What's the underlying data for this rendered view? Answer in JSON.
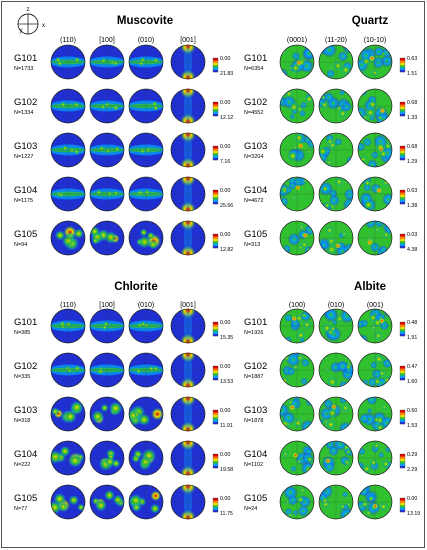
{
  "axes_icon": {
    "labels": [
      "z",
      "y",
      "x"
    ]
  },
  "scale_colors": [
    "#2030d0",
    "#00a0ff",
    "#30c030",
    "#e8e000",
    "#ff8000",
    "#e00000"
  ],
  "panels": [
    {
      "title": "Muscovite",
      "columns": [
        "(110)",
        "[100]",
        "(010)",
        "[001]"
      ],
      "rows": [
        {
          "sample": "G101",
          "n": "N=1733",
          "scale_min": "0.00",
          "scale_max": "21.83"
        },
        {
          "sample": "G102",
          "n": "N=1334",
          "scale_min": "0.00",
          "scale_max": "12.12"
        },
        {
          "sample": "G103",
          "n": "N=1227",
          "scale_min": "0.00",
          "scale_max": "7.16"
        },
        {
          "sample": "G104",
          "n": "N=1175",
          "scale_min": "0.00",
          "scale_max": "25.66"
        },
        {
          "sample": "G105",
          "n": "N=94",
          "scale_min": "0.00",
          "scale_max": "12.82"
        }
      ]
    },
    {
      "title": "Quartz",
      "columns": [
        "(0001)",
        "(11-20)",
        "(10-10)"
      ],
      "rows": [
        {
          "sample": "G101",
          "n": "N=6354",
          "scale_min": "0.63",
          "scale_max": "1.51"
        },
        {
          "sample": "G102",
          "n": "N=4552",
          "scale_min": "0.68",
          "scale_max": "1.33"
        },
        {
          "sample": "G103",
          "n": "N=3204",
          "scale_min": "0.68",
          "scale_max": "1.29"
        },
        {
          "sample": "G104",
          "n": "N=4672",
          "scale_min": "0.63",
          "scale_max": "1.38"
        },
        {
          "sample": "G105",
          "n": "N=313",
          "scale_min": "0.03",
          "scale_max": "4.38"
        }
      ]
    },
    {
      "title": "Chlorite",
      "columns": [
        "(110)",
        "[100]",
        "(010)",
        "[001]"
      ],
      "rows": [
        {
          "sample": "G101",
          "n": "N=385",
          "scale_min": "0.00",
          "scale_max": "15.35"
        },
        {
          "sample": "G102",
          "n": "N=335",
          "scale_min": "0.00",
          "scale_max": "13.53"
        },
        {
          "sample": "G103",
          "n": "N=318",
          "scale_min": "0.00",
          "scale_max": "11.91"
        },
        {
          "sample": "G104",
          "n": "N=222",
          "scale_min": "0.00",
          "scale_max": "19.58"
        },
        {
          "sample": "G105",
          "n": "N=77",
          "scale_min": "0.00",
          "scale_max": "11.75"
        }
      ]
    },
    {
      "title": "Albite",
      "columns": [
        "(100)",
        "(010)",
        "(001)"
      ],
      "rows": [
        {
          "sample": "G101",
          "n": "N=1926",
          "scale_min": "0.48",
          "scale_max": "1.91"
        },
        {
          "sample": "G102",
          "n": "N=1887",
          "scale_min": "0.47",
          "scale_max": "1.60"
        },
        {
          "sample": "G103",
          "n": "N=1878",
          "scale_min": "0.60",
          "scale_max": "1.53"
        },
        {
          "sample": "G104",
          "n": "N=1102",
          "scale_min": "0.29",
          "scale_max": "2.29"
        },
        {
          "sample": "G105",
          "n": "N=24",
          "scale_min": "0.00",
          "scale_max": "13.19"
        }
      ]
    }
  ]
}
